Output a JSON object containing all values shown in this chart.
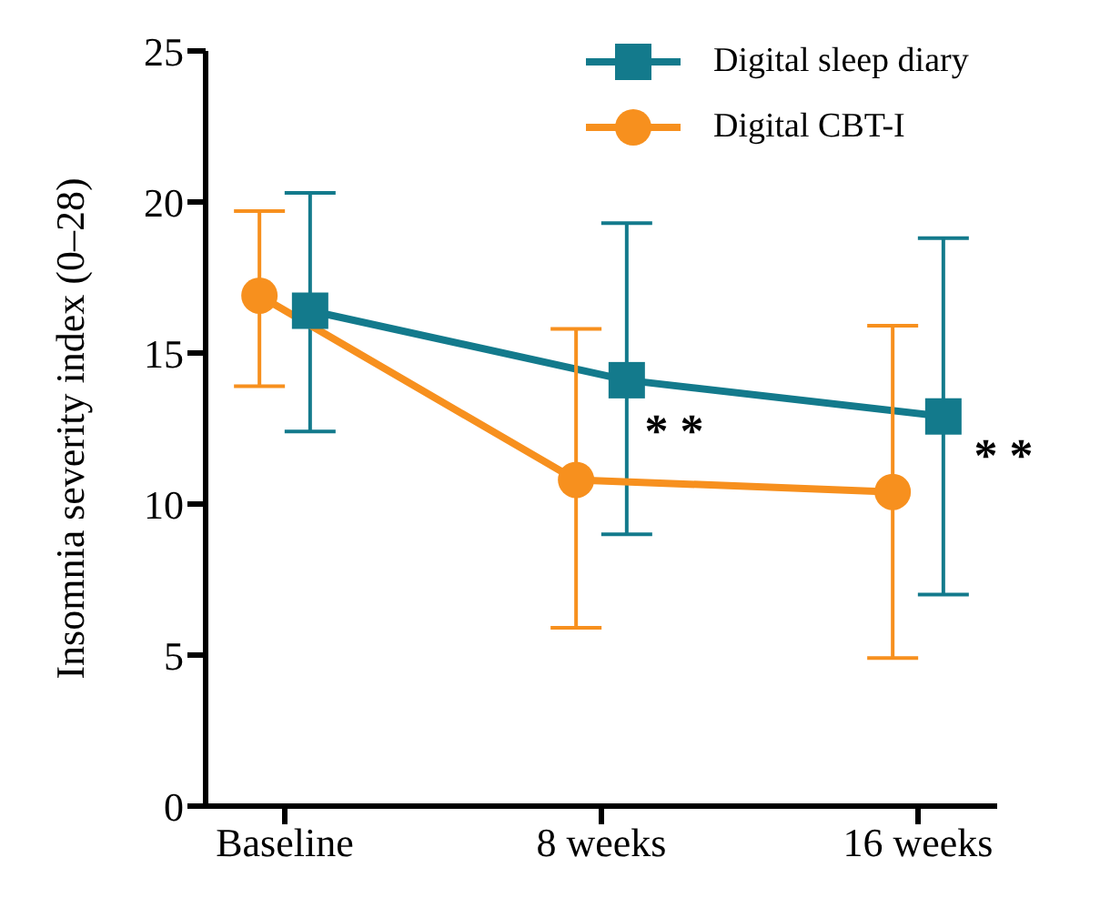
{
  "chart_data": {
    "type": "line",
    "ylabel": "Insomnia severity index (0–28)",
    "categories": [
      "Baseline",
      "8 weeks",
      "16 weeks"
    ],
    "series": [
      {
        "name": "Digital sleep diary",
        "color": "#137a8c",
        "marker": "square",
        "values": [
          16.4,
          14.1,
          12.9
        ],
        "errors": [
          [
            12.4,
            20.3
          ],
          [
            9.0,
            19.3
          ],
          [
            7.0,
            18.8
          ]
        ]
      },
      {
        "name": "Digital CBT-I",
        "color": "#f7901e",
        "marker": "circle",
        "values": [
          16.9,
          10.8,
          10.4
        ],
        "errors": [
          [
            13.9,
            19.7
          ],
          [
            5.9,
            15.8
          ],
          [
            4.9,
            15.9
          ]
        ]
      }
    ],
    "ylim": [
      0,
      25
    ],
    "yticks": [
      0,
      5,
      10,
      15,
      20,
      25
    ],
    "grid": false,
    "legend": "top right",
    "annotations": [
      "* *",
      "* *"
    ]
  }
}
